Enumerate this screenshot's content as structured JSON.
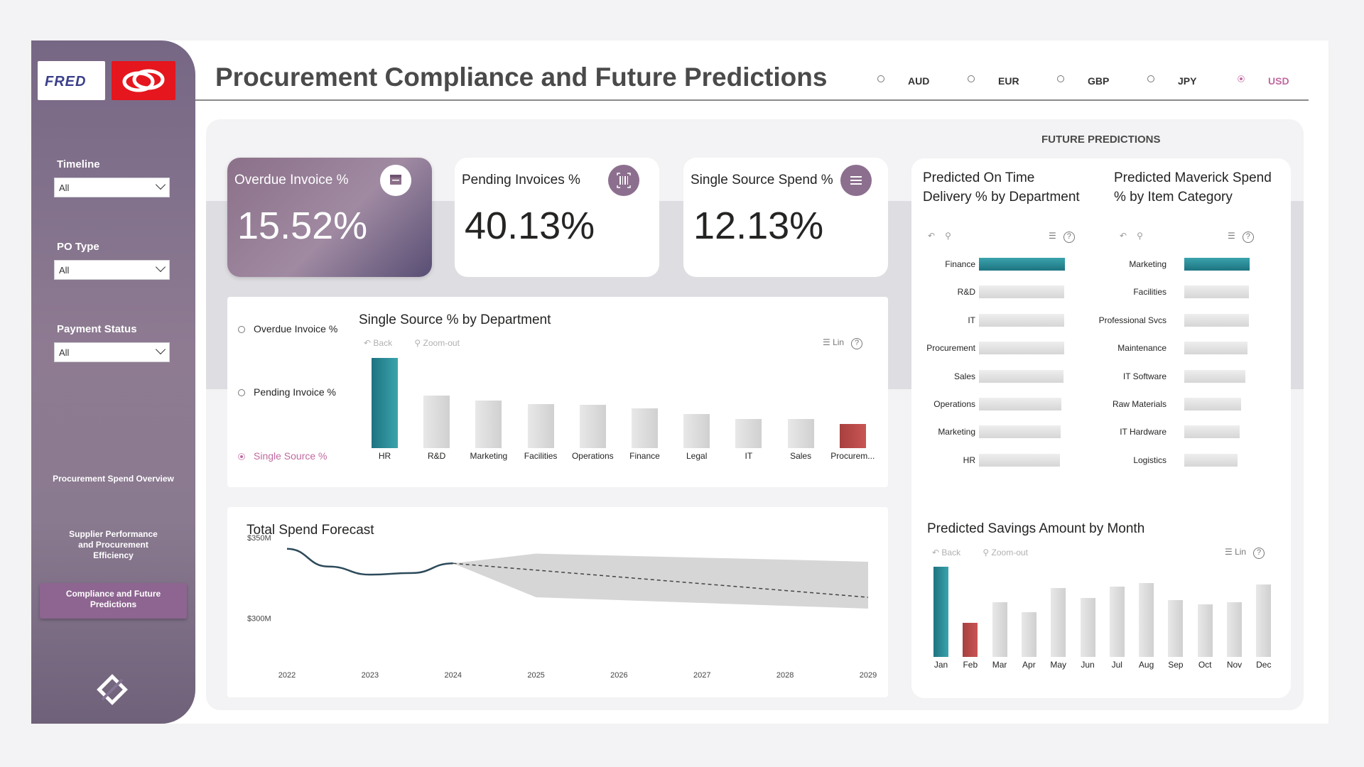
{
  "header": {
    "title": "Procurement Compliance and Future Predictions",
    "currencies": [
      {
        "code": "AUD",
        "selected": false
      },
      {
        "code": "EUR",
        "selected": false
      },
      {
        "code": "GBP",
        "selected": false
      },
      {
        "code": "JPY",
        "selected": false
      },
      {
        "code": "USD",
        "selected": true
      }
    ]
  },
  "sidebar": {
    "logo_text": "FRED",
    "filters": [
      {
        "label": "Timeline",
        "value": "All"
      },
      {
        "label": "PO Type",
        "value": "All"
      },
      {
        "label": "Payment Status",
        "value": "All"
      }
    ],
    "nav": [
      {
        "label": "Procurement Spend Overview",
        "active": false
      },
      {
        "label": "Supplier Performance and Procurement Efficiency",
        "active": false
      },
      {
        "label": "Compliance and Future Predictions",
        "active": true
      }
    ]
  },
  "kpis": [
    {
      "title": "Overdue Invoice %",
      "value": "15.52%",
      "icon": "calendar-icon"
    },
    {
      "title": "Pending Invoices %",
      "value": "40.13%",
      "icon": "barcode-icon"
    },
    {
      "title": "Single Source Spend %",
      "value": "12.13%",
      "icon": "list-icon"
    }
  ],
  "metric_selector": [
    {
      "label": "Overdue Invoice %",
      "selected": false
    },
    {
      "label": "Pending Invoice %",
      "selected": false
    },
    {
      "label": "Single Source %",
      "selected": true
    }
  ],
  "toolbar": {
    "back": "Back",
    "zoom_out": "Zoom-out",
    "lin": "Lin",
    "help": "?"
  },
  "future_predictions_label": "FUTURE PREDICTIONS",
  "colors": {
    "accent": "#8d6590",
    "teal": "#1d7480",
    "red": "#a8403f",
    "selected": "#c06aa0"
  },
  "chart_data": [
    {
      "id": "single-source",
      "type": "bar",
      "title": "Single Source % by Department",
      "categories": [
        "HR",
        "R&D",
        "Marketing",
        "Facilities",
        "Operations",
        "Finance",
        "Legal",
        "IT",
        "Sales",
        "Procurem..."
      ],
      "values": [
        100,
        58,
        53,
        49,
        48,
        44,
        38,
        32,
        32,
        27
      ],
      "highlight": {
        "HR": "teal",
        "Procurem...": "red"
      },
      "ylim": [
        0,
        100
      ]
    },
    {
      "id": "total-spend",
      "type": "line",
      "title": "Total Spend Forecast",
      "x": [
        "2022",
        "2023",
        "2024",
        "2025",
        "2026",
        "2027",
        "2028",
        "2029"
      ],
      "y_ticks": [
        "$350M",
        "$300M"
      ],
      "ylim": [
        270,
        360
      ],
      "actual": [
        {
          "x": 2022,
          "y": 343
        },
        {
          "x": 2022.5,
          "y": 332
        },
        {
          "x": 2023,
          "y": 327
        },
        {
          "x": 2023.5,
          "y": 328
        },
        {
          "x": 2024,
          "y": 334
        }
      ],
      "forecast": [
        {
          "x": 2024,
          "y": 334
        },
        {
          "x": 2029,
          "y": 313
        }
      ],
      "forecast_upper": [
        {
          "x": 2024,
          "y": 334
        },
        {
          "x": 2025,
          "y": 340
        },
        {
          "x": 2029,
          "y": 335
        }
      ],
      "forecast_lower": [
        {
          "x": 2024,
          "y": 334
        },
        {
          "x": 2025,
          "y": 313
        },
        {
          "x": 2029,
          "y": 306
        }
      ]
    },
    {
      "id": "on-time-delivery",
      "type": "bar",
      "orientation": "horizontal",
      "title": "Predicted On Time Delivery % by Department",
      "categories": [
        "Finance",
        "R&D",
        "IT",
        "Procurement",
        "Sales",
        "Operations",
        "Marketing",
        "HR"
      ],
      "values": [
        100,
        99,
        99,
        99,
        98,
        96,
        95,
        94
      ],
      "highlight": {
        "Finance": "teal"
      },
      "ylim": [
        0,
        100
      ]
    },
    {
      "id": "maverick-spend",
      "type": "bar",
      "orientation": "horizontal",
      "title": "Predicted Maverick Spend % by Item Category",
      "categories": [
        "Marketing",
        "Facilities",
        "Professional Svcs",
        "Maintenance",
        "IT Software",
        "Raw Materials",
        "IT Hardware",
        "Logistics"
      ],
      "values": [
        100,
        99,
        99,
        97,
        93,
        87,
        85,
        81
      ],
      "highlight": {
        "Marketing": "teal"
      },
      "ylim": [
        0,
        100
      ]
    },
    {
      "id": "savings",
      "type": "bar",
      "title": "Predicted Savings Amount by Month",
      "categories": [
        "Jan",
        "Feb",
        "Mar",
        "Apr",
        "May",
        "Jun",
        "Jul",
        "Aug",
        "Sep",
        "Oct",
        "Nov",
        "Dec"
      ],
      "values": [
        100,
        38,
        61,
        50,
        76,
        65,
        78,
        82,
        63,
        58,
        61,
        80
      ],
      "highlight": {
        "Jan": "teal",
        "Feb": "red"
      },
      "ylim": [
        0,
        100
      ]
    }
  ]
}
